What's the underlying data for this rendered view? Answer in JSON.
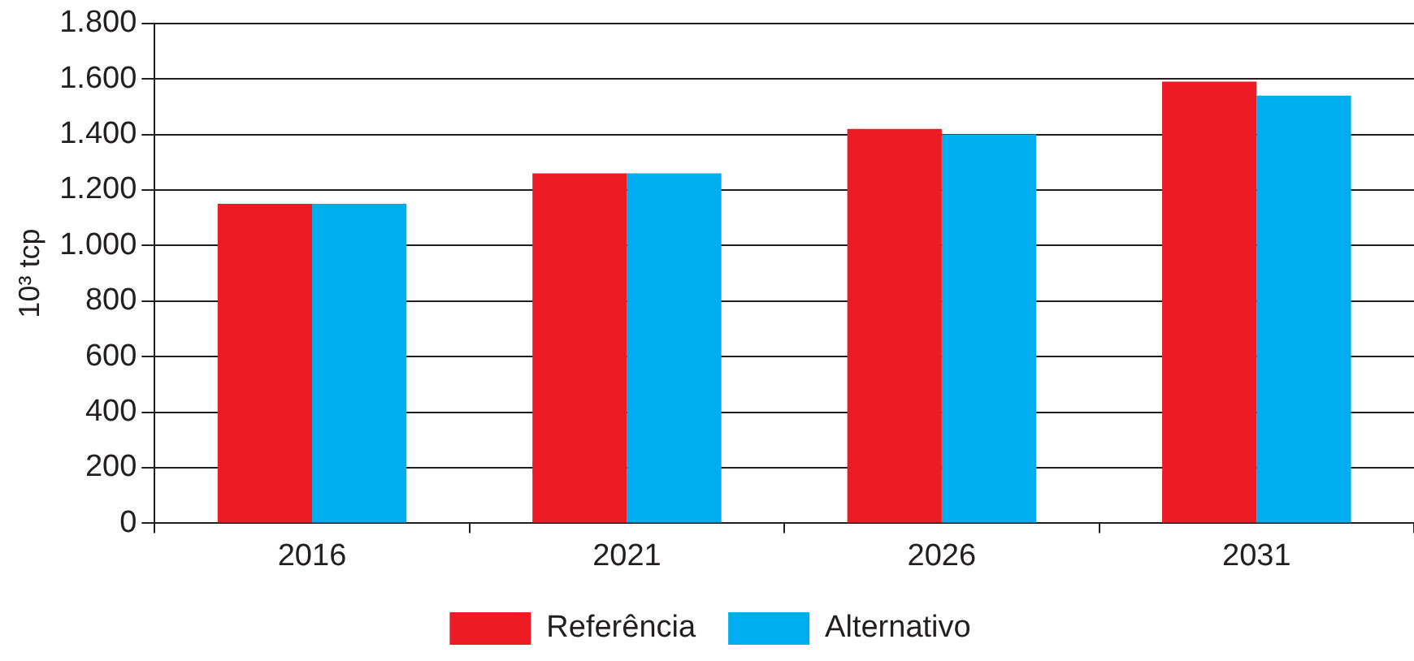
{
  "chart_data": {
    "type": "bar",
    "ylabel": "10³ tcp",
    "categories": [
      "2016",
      "2021",
      "2026",
      "2031"
    ],
    "series": [
      {
        "name": "Referência",
        "color": "#ed1c24",
        "values": [
          1150,
          1260,
          1420,
          1590
        ]
      },
      {
        "name": "Alternativo",
        "color": "#00aeef",
        "values": [
          1150,
          1260,
          1400,
          1540
        ]
      }
    ],
    "ylim": [
      0,
      1800
    ],
    "yticks": [
      0,
      200,
      400,
      600,
      800,
      {
        "value": 1000,
        "label": "1.000"
      },
      {
        "value": 1200,
        "label": "1.200"
      },
      {
        "value": 1400,
        "label": "1.400"
      },
      {
        "value": 1600,
        "label": "1.600"
      },
      {
        "value": 1800,
        "label": "1.800"
      }
    ],
    "grid": "y",
    "legend": "bottom"
  }
}
